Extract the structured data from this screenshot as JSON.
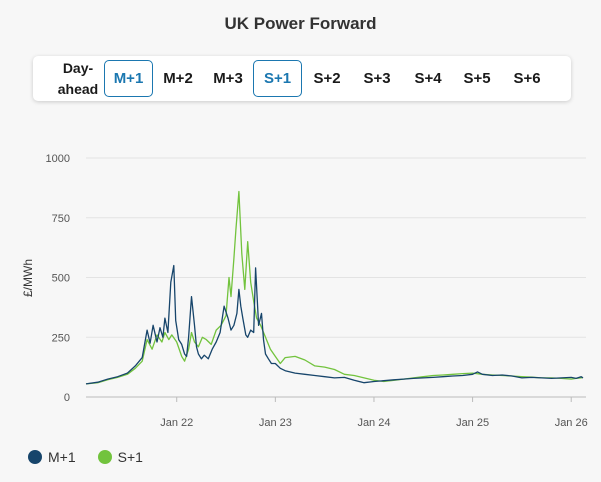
{
  "title": "UK Power Forward",
  "tabs": [
    {
      "label": "Day-ahead",
      "active": false
    },
    {
      "label": "M+1",
      "active": true
    },
    {
      "label": "M+2",
      "active": false
    },
    {
      "label": "M+3",
      "active": false
    },
    {
      "label": "S+1",
      "active": true
    },
    {
      "label": "S+2",
      "active": false
    },
    {
      "label": "S+3",
      "active": false
    },
    {
      "label": "S+4",
      "active": false
    },
    {
      "label": "S+5",
      "active": false
    },
    {
      "label": "S+6",
      "active": false
    }
  ],
  "colors": {
    "m1": "#17456b",
    "s1": "#72c33d",
    "active_tab": "#1b77b0"
  },
  "legend": [
    {
      "name": "M+1",
      "color": "#17456b"
    },
    {
      "name": "S+1",
      "color": "#72c33d"
    }
  ],
  "chart_data": {
    "type": "line",
    "ylabel": "£/MWh",
    "ylim": [
      0,
      1000
    ],
    "yticks": [
      0,
      250,
      500,
      750,
      1000
    ],
    "xticks": [
      {
        "label": "Jan 22",
        "x": 2022.0
      },
      {
        "label": "Jan 23",
        "x": 2023.0
      },
      {
        "label": "Jan 24",
        "x": 2024.0
      },
      {
        "label": "Jan 25",
        "x": 2025.0
      },
      {
        "label": "Jan 26",
        "x": 2026.0
      }
    ],
    "xlim": [
      2021.08,
      2026.15
    ],
    "grid": true,
    "legend_position": "bottom-left",
    "series": [
      {
        "name": "M+1",
        "x": [
          2021.08,
          2021.2,
          2021.3,
          2021.4,
          2021.5,
          2021.58,
          2021.65,
          2021.7,
          2021.73,
          2021.76,
          2021.8,
          2021.83,
          2021.86,
          2021.88,
          2021.91,
          2021.94,
          2021.97,
          2021.99,
          2022.02,
          2022.05,
          2022.08,
          2022.1,
          2022.12,
          2022.15,
          2022.18,
          2022.2,
          2022.22,
          2022.25,
          2022.28,
          2022.32,
          2022.36,
          2022.4,
          2022.44,
          2022.48,
          2022.52,
          2022.55,
          2022.58,
          2022.61,
          2022.63,
          2022.65,
          2022.67,
          2022.7,
          2022.72,
          2022.75,
          2022.78,
          2022.8,
          2022.83,
          2022.86,
          2022.88,
          2022.9,
          2022.93,
          2022.96,
          2023.0,
          2023.05,
          2023.1,
          2023.2,
          2023.3,
          2023.4,
          2023.5,
          2023.6,
          2023.7,
          2023.8,
          2023.9,
          2024.0,
          2024.1,
          2024.2,
          2024.3,
          2024.4,
          2024.5,
          2024.6,
          2024.7,
          2024.8,
          2024.9,
          2025.0,
          2025.05,
          2025.1,
          2025.2,
          2025.3,
          2025.4,
          2025.5,
          2025.6,
          2025.7,
          2025.8,
          2025.9,
          2026.0,
          2026.05,
          2026.1,
          2026.12
        ],
        "y": [
          55,
          62,
          75,
          85,
          100,
          130,
          165,
          280,
          225,
          300,
          230,
          290,
          250,
          330,
          270,
          480,
          550,
          320,
          240,
          220,
          180,
          170,
          250,
          420,
          300,
          210,
          180,
          160,
          175,
          160,
          200,
          230,
          270,
          380,
          330,
          280,
          300,
          350,
          450,
          380,
          330,
          260,
          250,
          280,
          270,
          540,
          300,
          350,
          240,
          180,
          160,
          140,
          140,
          120,
          110,
          100,
          95,
          90,
          85,
          80,
          82,
          70,
          60,
          65,
          68,
          72,
          75,
          78,
          80,
          82,
          85,
          88,
          90,
          95,
          105,
          95,
          90,
          92,
          88,
          80,
          82,
          80,
          78,
          80,
          82,
          78,
          85,
          80
        ]
      },
      {
        "name": "S+1",
        "x": [
          2021.08,
          2021.2,
          2021.3,
          2021.4,
          2021.5,
          2021.58,
          2021.65,
          2021.7,
          2021.75,
          2021.8,
          2021.85,
          2021.88,
          2021.92,
          2021.95,
          2022.0,
          2022.05,
          2022.08,
          2022.12,
          2022.15,
          2022.18,
          2022.22,
          2022.26,
          2022.3,
          2022.35,
          2022.4,
          2022.45,
          2022.5,
          2022.53,
          2022.55,
          2022.58,
          2022.6,
          2022.63,
          2022.66,
          2022.69,
          2022.72,
          2022.75,
          2022.78,
          2022.81,
          2022.85,
          2022.9,
          2022.95,
          2023.0,
          2023.05,
          2023.1,
          2023.2,
          2023.3,
          2023.4,
          2023.5,
          2023.6,
          2023.7,
          2023.8,
          2023.9,
          2024.0,
          2024.1,
          2024.2,
          2024.3,
          2024.4,
          2024.5,
          2024.6,
          2024.7,
          2024.8,
          2024.9,
          2025.0,
          2025.1,
          2025.2,
          2025.3,
          2025.4,
          2025.5,
          2025.6,
          2025.7,
          2025.8,
          2025.9,
          2026.0,
          2026.05,
          2026.1,
          2026.12
        ],
        "y": [
          55,
          60,
          72,
          82,
          95,
          120,
          150,
          240,
          200,
          260,
          230,
          270,
          240,
          260,
          230,
          170,
          150,
          200,
          270,
          230,
          210,
          250,
          240,
          220,
          280,
          300,
          340,
          500,
          420,
          580,
          700,
          860,
          600,
          450,
          650,
          480,
          400,
          330,
          300,
          250,
          200,
          170,
          140,
          165,
          170,
          155,
          130,
          125,
          115,
          95,
          90,
          80,
          70,
          65,
          70,
          75,
          80,
          85,
          90,
          92,
          95,
          98,
          100,
          95,
          92,
          90,
          88,
          85,
          83,
          80,
          80,
          78,
          75,
          78,
          80,
          82
        ]
      }
    ]
  }
}
